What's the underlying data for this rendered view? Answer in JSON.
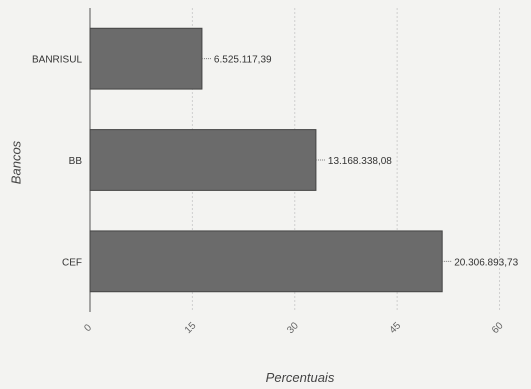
{
  "chart_data": {
    "type": "bar",
    "orientation": "horizontal",
    "categories": [
      "BANRISUL",
      "BB",
      "CEF"
    ],
    "values": [
      16.4,
      33.1,
      51.6
    ],
    "data_labels": [
      "6.525.117,39",
      "13.168.338,08",
      "20.306.893,73"
    ],
    "xlabel": "Percentuais",
    "ylabel": "Bancos",
    "xlim": [
      0,
      63
    ],
    "xticks": [
      "0",
      "15",
      "30",
      "45",
      "60"
    ],
    "xtick_values": [
      0,
      15,
      30,
      45,
      60
    ],
    "grid": "vertical",
    "bar_color": "#6b6b6b"
  }
}
